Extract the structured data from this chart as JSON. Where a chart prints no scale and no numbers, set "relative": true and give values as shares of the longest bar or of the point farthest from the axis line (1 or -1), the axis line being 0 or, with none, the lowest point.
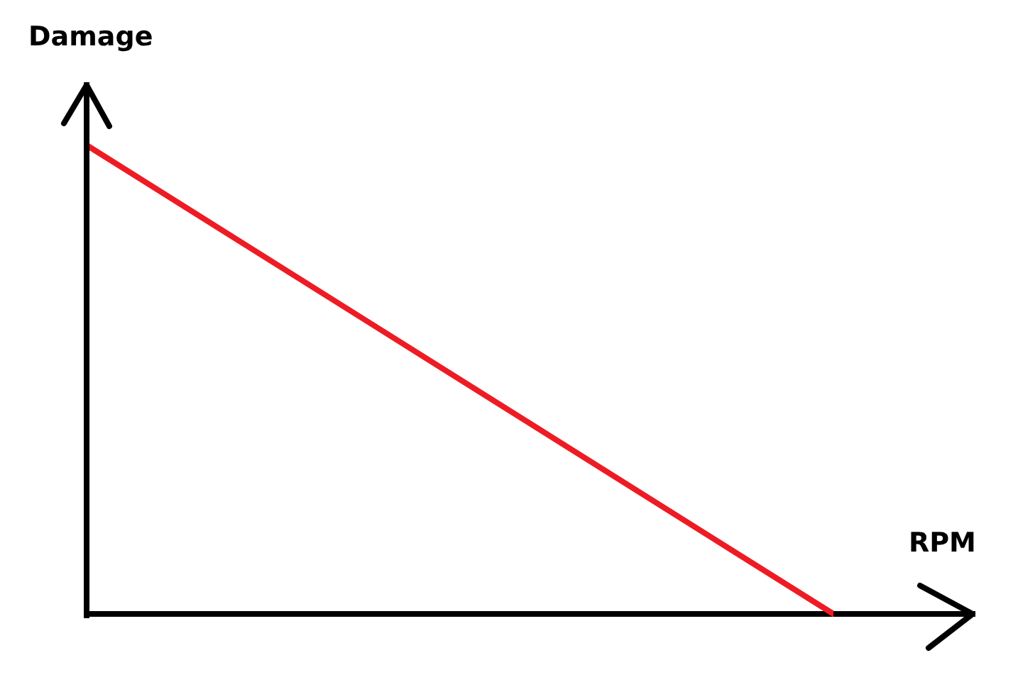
{
  "chart_data": {
    "type": "line",
    "xlabel": "RPM",
    "ylabel": "Damage",
    "categories": [
      null,
      null
    ],
    "values": [
      1,
      0
    ],
    "color": "#ed1c24",
    "relative": true,
    "ref_lines": [
      {
        "axis": "y",
        "value": 0,
        "color": "#000000"
      }
    ]
  }
}
